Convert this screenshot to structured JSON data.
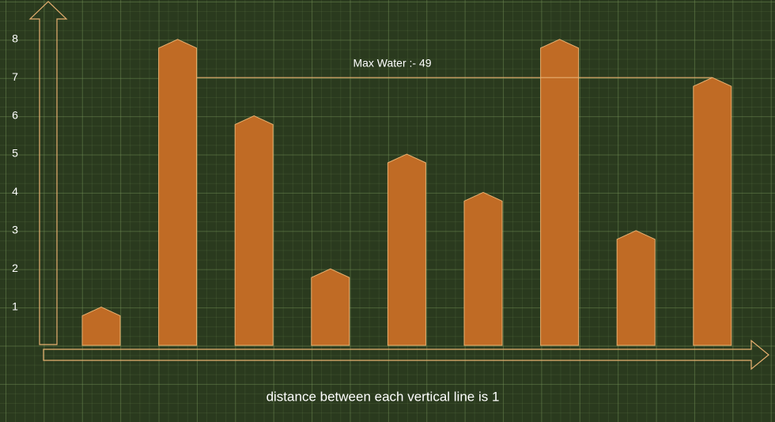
{
  "chart_data": {
    "type": "bar",
    "annotation": "Max Water :- 49",
    "x_label": "distance between each vertical line is 1",
    "values": [
      1,
      8,
      6,
      2,
      5,
      4,
      8,
      3,
      7
    ],
    "color": "#c06b25",
    "ylim": [
      0,
      9
    ],
    "yticks": [
      1,
      2,
      3,
      4,
      5,
      6,
      7,
      8
    ],
    "max_water_line": {
      "start": 1,
      "end": 8,
      "level": 7
    }
  }
}
